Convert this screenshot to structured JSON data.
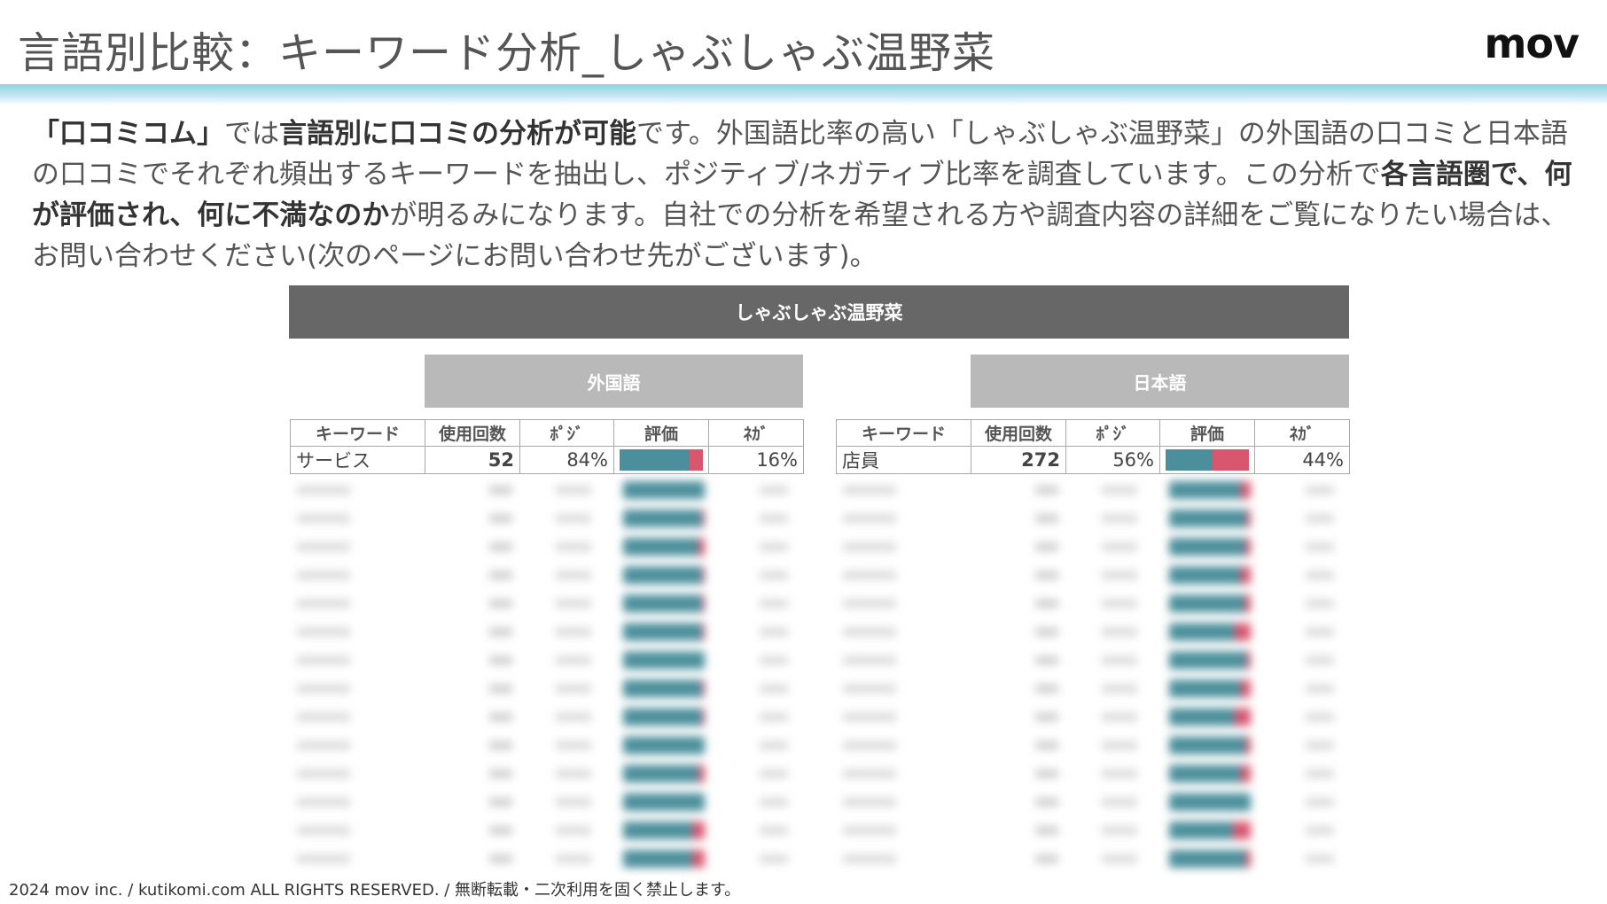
{
  "header": {
    "title": "言語別比較：キーワード分析_しゃぶしゃぶ温野菜",
    "logo": "mov"
  },
  "intro": {
    "p1": "「口コミコム」",
    "p2": "では",
    "p3": "言語別に口コミの分析が可能",
    "p4": "です。外国語比率の高い「しゃぶしゃぶ温野菜」の外国語の口コミと日本語の口コミでそれぞれ頻出するキーワードを抽出し、ポジティブ/ネガティブ比率を調査しています。この分析で",
    "p5": "各言語圏で、何が評価され、何に不満なのか",
    "p6": "が明るみになります。自社での分析を希望される方や調査内容の詳細をご覧になりたい場合は、お問い合わせください(次のページにお問い合わせ先がございます)。"
  },
  "panel": {
    "title": "しゃぶしゃぶ温野菜",
    "foreign_label": "外国語",
    "japanese_label": "日本語"
  },
  "table": {
    "headers": [
      "キーワード",
      "使用回数",
      "ﾎﾟｼﾞ",
      "評価",
      "ﾈｶﾞ"
    ],
    "foreign_row": {
      "keyword": "サービス",
      "count": "52",
      "pos": "84%",
      "neg": "16%",
      "pos_value": 84
    },
    "japanese_row": {
      "keyword": "店員",
      "count": "272",
      "pos": "56%",
      "neg": "44%",
      "pos_value": 56
    }
  },
  "blurred_rows": {
    "foreign_pos": [
      100,
      97,
      92,
      97,
      97,
      97,
      100,
      97,
      97,
      100,
      92,
      100,
      85,
      85
    ],
    "japanese_pos": [
      88,
      95,
      93,
      88,
      92,
      80,
      95,
      88,
      80,
      93,
      88,
      100,
      78,
      93
    ]
  },
  "colors": {
    "positive": "#4b8f9c",
    "negative": "#d9566f"
  },
  "footer": "2024 mov inc. / kutikomi.com ALL RIGHTS RESERVED. / 無断転載・二次利用を固く禁止します。"
}
